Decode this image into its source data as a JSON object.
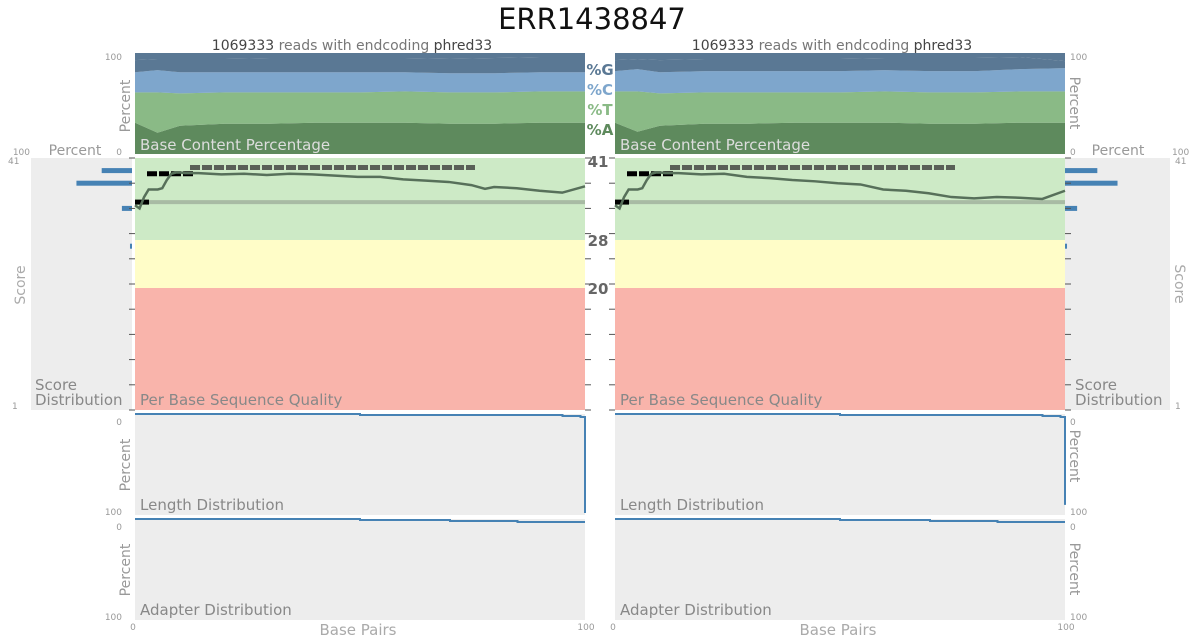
{
  "report": {
    "title": "ERR1438847",
    "reads": "1069333",
    "reads_text": "reads with endcoding",
    "encoding": "phred33"
  },
  "colors": {
    "g": "#5a7894",
    "c": "#7ea6cc",
    "t": "#8aba86",
    "a": "#5e8a5d",
    "q_good": "#cdeac6",
    "q_ok": "#fffdc8",
    "q_bad": "#f9b4ab",
    "panel": "#ededed",
    "bar": "#4682b4",
    "line": "#57705a",
    "axis_text": "#999999",
    "label_text": "#888888"
  },
  "labels": {
    "percent": "Percent",
    "score": "Score",
    "score_distribution": [
      "Score",
      "Distribution"
    ],
    "base_pairs": "Base Pairs",
    "base_content": "Base Content Percentage",
    "per_base_quality": "Per Base Sequence Quality",
    "length_distribution": "Length Distribution",
    "adapter_distribution": "Adapter Distribution",
    "nucleotides": [
      "%G",
      "%C",
      "%T",
      "%A"
    ],
    "quality_thresholds": [
      "41",
      "28",
      "20"
    ]
  },
  "ticks": {
    "pct_top": "100",
    "pct_bottom": "0",
    "score_max": "41",
    "score_min": "1",
    "len_top": "0",
    "len_bottom": "100",
    "x_start": "0",
    "x_end": "100"
  },
  "chart_data": [
    {
      "type": "area",
      "panel": "left",
      "title": "Base Content Percentage",
      "x": [
        0,
        5,
        10,
        20,
        30,
        40,
        50,
        60,
        70,
        80,
        90,
        100
      ],
      "series": [
        {
          "name": "%A",
          "values": [
            31,
            21,
            28,
            30,
            30,
            31,
            31,
            31,
            30,
            30,
            31,
            31
          ]
        },
        {
          "name": "%T",
          "values": [
            30,
            40,
            32,
            31,
            31,
            30,
            30,
            31,
            31,
            31,
            31,
            31
          ]
        },
        {
          "name": "%C",
          "values": [
            20,
            22,
            21,
            20,
            20,
            20,
            20,
            19,
            19,
            19,
            19,
            19
          ]
        },
        {
          "name": "%G",
          "values": [
            12,
            11,
            13,
            13,
            14,
            14,
            14,
            14,
            14,
            15,
            15,
            15
          ]
        }
      ],
      "ylim": [
        0,
        100
      ],
      "ylabel": "Percent"
    },
    {
      "type": "area",
      "panel": "right",
      "title": "Base Content Percentage",
      "x": [
        0,
        5,
        10,
        20,
        30,
        40,
        50,
        60,
        70,
        80,
        90,
        100
      ],
      "series": [
        {
          "name": "%A",
          "values": [
            31,
            22,
            28,
            30,
            30,
            31,
            31,
            31,
            30,
            30,
            31,
            31
          ]
        },
        {
          "name": "%T",
          "values": [
            31,
            40,
            32,
            31,
            31,
            30,
            30,
            31,
            31,
            31,
            31,
            31
          ]
        },
        {
          "name": "%C",
          "values": [
            20,
            22,
            21,
            21,
            21,
            21,
            21,
            21,
            21,
            21,
            22,
            23
          ]
        },
        {
          "name": "%G",
          "values": [
            11,
            10,
            12,
            12,
            12,
            12,
            12,
            12,
            13,
            13,
            12,
            7
          ]
        }
      ],
      "ylim": [
        0,
        100
      ],
      "ylabel": "Percent"
    },
    {
      "type": "line",
      "panel": "left",
      "title": "Per Base Sequence Quality",
      "x": [
        1,
        2,
        3,
        4,
        5,
        6,
        7,
        8,
        9,
        10,
        11,
        12,
        15,
        20,
        25,
        30,
        35,
        40,
        45,
        50,
        55,
        60,
        65,
        70,
        75,
        78,
        80,
        85,
        90,
        95,
        100
      ],
      "mean_quality": [
        33.5,
        33.0,
        34.8,
        36.0,
        36.0,
        36.0,
        36.2,
        37.5,
        38.5,
        38.7,
        38.7,
        38.6,
        38.6,
        38.4,
        38.5,
        38.3,
        38.5,
        38.4,
        38.2,
        38.0,
        38.0,
        37.6,
        37.4,
        37.2,
        36.7,
        36.1,
        36.4,
        36.2,
        35.8,
        35.5,
        36.5
      ],
      "thresholds": [
        41,
        28,
        20
      ],
      "ylim": [
        1,
        41
      ],
      "ylabel": "Score"
    },
    {
      "type": "line",
      "panel": "right",
      "title": "Per Base Sequence Quality",
      "x": [
        1,
        2,
        3,
        4,
        5,
        6,
        7,
        8,
        9,
        10,
        11,
        12,
        15,
        20,
        25,
        30,
        35,
        40,
        45,
        50,
        55,
        60,
        65,
        70,
        75,
        80,
        85,
        90,
        95,
        100
      ],
      "mean_quality": [
        33.5,
        33.0,
        34.8,
        36.0,
        36.0,
        36.0,
        36.2,
        37.5,
        38.5,
        38.7,
        38.7,
        38.6,
        38.6,
        38.4,
        38.5,
        38.0,
        37.8,
        37.5,
        37.3,
        37.0,
        36.8,
        36.0,
        35.8,
        35.4,
        34.8,
        34.6,
        34.8,
        34.7,
        34.5,
        35.8
      ],
      "thresholds": [
        41,
        28,
        20
      ],
      "ylim": [
        1,
        41
      ],
      "ylabel": "Score"
    },
    {
      "type": "bar",
      "panel": "left",
      "title": "Score Distribution",
      "categories": [
        39,
        37,
        33,
        27
      ],
      "values": [
        30,
        55,
        10,
        2
      ],
      "xlabel": "Percent",
      "xlim": [
        0,
        100
      ],
      "ylabel": "Score"
    },
    {
      "type": "bar",
      "panel": "right",
      "title": "Score Distribution",
      "categories": [
        39,
        37,
        33,
        27
      ],
      "values": [
        32,
        52,
        12,
        2
      ],
      "xlabel": "Percent",
      "xlim": [
        0,
        100
      ],
      "ylabel": "Score"
    },
    {
      "type": "area",
      "panel": "left",
      "title": "Length Distribution",
      "x": [
        0,
        10,
        50,
        95,
        99,
        100
      ],
      "values": [
        0,
        0,
        1,
        2,
        3,
        98
      ],
      "ylim": [
        0,
        100
      ],
      "ylabel": "Percent"
    },
    {
      "type": "area",
      "panel": "right",
      "title": "Length Distribution",
      "x": [
        0,
        10,
        50,
        95,
        99,
        100
      ],
      "values": [
        0,
        0,
        1,
        2,
        3,
        90
      ],
      "ylim": [
        0,
        100
      ],
      "ylabel": "Percent"
    },
    {
      "type": "area",
      "panel": "left",
      "title": "Adapter Distribution",
      "x": [
        0,
        10,
        30,
        50,
        70,
        85,
        100
      ],
      "values": [
        0,
        0,
        0,
        1,
        2,
        3,
        3
      ],
      "ylim": [
        0,
        100
      ],
      "ylabel": "Percent",
      "xlabel": "Base Pairs"
    },
    {
      "type": "area",
      "panel": "right",
      "title": "Adapter Distribution",
      "x": [
        0,
        10,
        30,
        50,
        70,
        85,
        100
      ],
      "values": [
        0,
        0,
        0,
        1,
        2,
        3,
        3
      ],
      "ylim": [
        0,
        100
      ],
      "ylabel": "Percent",
      "xlabel": "Base Pairs"
    }
  ]
}
